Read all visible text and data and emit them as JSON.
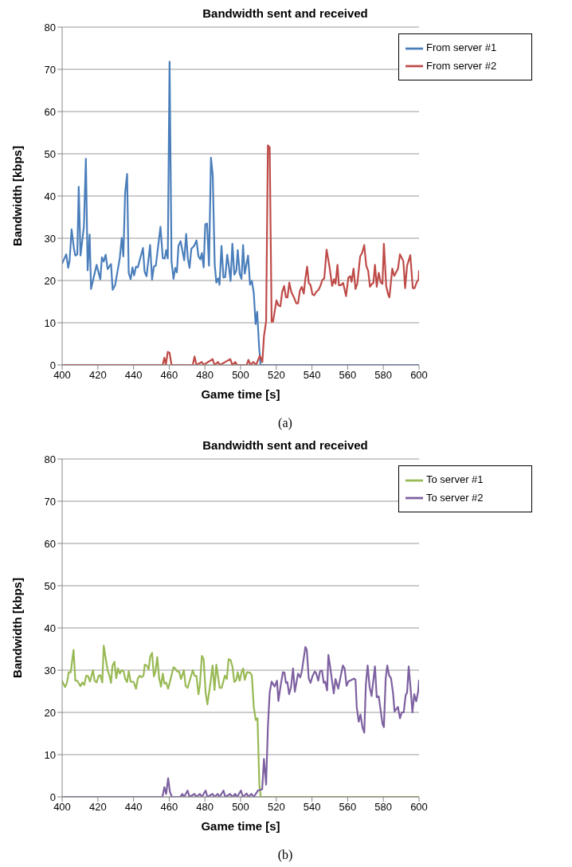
{
  "chart_data": [
    {
      "type": "line",
      "title": "Bandwidth sent and received",
      "xlabel": "Game time [s]",
      "ylabel": "Bandwidth [kbps]",
      "annotations": [
        "(a)"
      ],
      "xlim": [
        400,
        600
      ],
      "xticks": [
        400,
        420,
        440,
        460,
        480,
        500,
        520,
        540,
        560,
        580,
        600
      ],
      "ylim": [
        0,
        80
      ],
      "yticks": [
        0,
        10,
        20,
        30,
        40,
        50,
        60,
        70,
        80
      ],
      "grid": "y",
      "legend": "top right",
      "marker": "none",
      "line_style": "solid",
      "series": [
        {
          "name": "From server #1",
          "color": "#4a7ebb",
          "x": [
            400,
            400.5,
            402.3,
            403.4,
            404.2,
            405.3,
            406.6,
            407.4,
            408.5,
            409.3,
            410.3,
            412.2,
            413.3,
            414.3,
            415.4,
            416.2,
            419.3,
            421.4,
            422.3,
            423.3,
            424.4,
            425.5,
            427.4,
            428.3,
            429.7,
            432.3,
            433.4,
            434.3,
            435.3,
            436.4,
            437.3,
            438.4,
            439.4,
            440.3,
            441.4,
            442.4,
            445.3,
            446.2,
            447.3,
            449.3,
            450.4,
            451.4,
            452.5,
            455.1,
            456.4,
            457.5,
            458.3,
            459.2,
            460.2,
            461.3,
            462.4,
            463.4,
            464.3,
            465.2,
            466.4,
            468.4,
            469.5,
            470.4,
            471.4,
            472.4,
            474,
            475.3,
            476.4,
            477.4,
            478.3,
            479.3,
            480.2,
            481.2,
            482.3,
            483.4,
            484.4,
            485.5,
            486.4,
            487.4,
            488.2,
            489.3,
            490.4,
            491.4,
            492.5,
            493.3,
            494.4,
            495.4,
            496.5,
            497.6,
            498.4,
            499.5,
            500.5,
            501.4,
            502.3,
            504.2,
            505.3,
            506.3,
            507.4,
            508.4,
            509.3,
            510.4,
            511.2,
            600
          ],
          "values": [
            24,
            24.5,
            26.2,
            23,
            24.8,
            32.1,
            27.6,
            25.9,
            26.2,
            42.2,
            25.9,
            32.7,
            48.8,
            22.4,
            30.9,
            18,
            23.7,
            20.3,
            25.5,
            24.5,
            26.1,
            22.7,
            23.9,
            17.8,
            18.9,
            25.3,
            30.1,
            25.7,
            40.8,
            45.2,
            21.8,
            20.3,
            23.1,
            21.2,
            23.3,
            23.1,
            27.7,
            22.1,
            21,
            28.4,
            20.2,
            23.3,
            23.5,
            32.7,
            25.3,
            25.2,
            27.2,
            25.2,
            71.8,
            24.5,
            20.4,
            23,
            21.9,
            28.2,
            29.3,
            24.8,
            31,
            25.3,
            23,
            27.5,
            28.2,
            29.5,
            25.7,
            25,
            26.5,
            23.1,
            33.3,
            33.5,
            23.5,
            49.1,
            44.9,
            23.8,
            19.5,
            20.5,
            19,
            28.2,
            20.7,
            20.8,
            26.1,
            23.8,
            19.9,
            28.7,
            21.4,
            22.3,
            27.2,
            21.6,
            20.4,
            28.4,
            21.6,
            25.9,
            19,
            19.9,
            17,
            9.7,
            12.6,
            4.1,
            0,
            0
          ]
        },
        {
          "name": "From server #2",
          "color": "#be4b48",
          "x": [
            400,
            456.3,
            457.3,
            458.1,
            459.2,
            460.2,
            461.3,
            473.2,
            474.2,
            475.3,
            478.3,
            479.3,
            484.3,
            485.4,
            487.3,
            488.5,
            494.2,
            495.4,
            497,
            498.1,
            503.4,
            504.4,
            505.5,
            507.1,
            508.7,
            510.8,
            512.2,
            513.1,
            514.3,
            515.3,
            516.3,
            517.4,
            518.2,
            520.1,
            521.2,
            522.3,
            523.3,
            524.4,
            525.4,
            526.3,
            527.3,
            528.4,
            529.9,
            531.2,
            532.2,
            533.3,
            534.3,
            535.4,
            536.3,
            537.3,
            538.2,
            539.2,
            540.3,
            541.3,
            542.4,
            543.7,
            544.7,
            545.8,
            546.9,
            548.2,
            549.8,
            551.3,
            552.4,
            553.2,
            554.3,
            555.1,
            556.2,
            557.5,
            559.1,
            560.4,
            561.5,
            562.2,
            563.3,
            564.4,
            565.4,
            567,
            568.1,
            569.3,
            570.4,
            571.5,
            572.5,
            573.6,
            574.4,
            575.3,
            576.3,
            577.4,
            578.5,
            579.5,
            580.3,
            581.6,
            582.7,
            583.4,
            585,
            586.1,
            588.2,
            589.3,
            591.2,
            592.2,
            593.3,
            595.1,
            596.5,
            597.5,
            598.8,
            599.7,
            600
          ],
          "values": [
            0,
            0,
            1.7,
            0,
            3.1,
            2.9,
            0,
            0,
            2,
            0,
            0.7,
            0,
            1.4,
            0,
            0.7,
            0,
            1.4,
            0,
            0.7,
            0,
            0,
            1.2,
            0,
            0.7,
            0,
            2.2,
            0.7,
            6.8,
            10.3,
            52,
            51.5,
            10.2,
            10.3,
            15.3,
            14.1,
            13.9,
            17.3,
            18.7,
            16,
            16,
            19.5,
            17.3,
            16,
            14.6,
            14.6,
            17.7,
            18.5,
            16.9,
            20.4,
            23.3,
            19.4,
            18.9,
            16.7,
            16.5,
            17.3,
            17.8,
            18.7,
            20.1,
            20.5,
            27.3,
            23.3,
            18.7,
            20.3,
            19.2,
            23.7,
            18.9,
            18.9,
            19.4,
            16.3,
            20.7,
            21,
            19.7,
            22.8,
            18,
            19.2,
            25.7,
            26.5,
            28.4,
            23.5,
            22.3,
            18.5,
            19.2,
            19.4,
            23.7,
            18.5,
            21.8,
            19.6,
            19.2,
            28.7,
            18.7,
            16.7,
            16,
            22.8,
            21.1,
            22.8,
            26.2,
            24.6,
            18.2,
            23.5,
            26,
            18.2,
            18.2,
            19.7,
            20.1,
            22.4
          ]
        }
      ]
    },
    {
      "type": "line",
      "title": "Bandwidth sent and received",
      "xlabel": "Game time [s]",
      "ylabel": "Bandwidth [kbps]",
      "annotations": [
        "(b)"
      ],
      "xlim": [
        400,
        600
      ],
      "xticks": [
        400,
        420,
        440,
        460,
        480,
        500,
        520,
        540,
        560,
        580,
        600
      ],
      "ylim": [
        0,
        80
      ],
      "yticks": [
        0,
        10,
        20,
        30,
        40,
        50,
        60,
        70,
        80
      ],
      "grid": "y",
      "legend": "top right",
      "marker": "none",
      "line_style": "solid",
      "series": [
        {
          "name": "To server #1",
          "color": "#98b954",
          "x": [
            400,
            400.5,
            401.6,
            402.7,
            403.7,
            404.8,
            406.4,
            407.4,
            408.5,
            410.3,
            411.3,
            412.4,
            413.5,
            414.5,
            415.6,
            417.3,
            418.2,
            419.3,
            420.5,
            421.4,
            422.5,
            423.3,
            425.5,
            426.3,
            427.4,
            428.2,
            429.3,
            430.3,
            431.3,
            432.3,
            433.4,
            434.5,
            435.3,
            436.4,
            437.3,
            438.4,
            440.1,
            441.4,
            442.4,
            443.5,
            444.5,
            445.6,
            446.3,
            447.4,
            448.5,
            449.3,
            450.4,
            451.4,
            452.3,
            453.3,
            454.4,
            455.4,
            456.4,
            457.3,
            458.3,
            459.4,
            460.4,
            462.4,
            463.4,
            464.5,
            465.5,
            466.6,
            468.2,
            469.2,
            470.3,
            473.2,
            474.2,
            475.3,
            476.4,
            477.2,
            478.3,
            479.3,
            480.4,
            481.4,
            483.2,
            484.3,
            485.4,
            486.4,
            488.3,
            489.4,
            491.2,
            492.3,
            493.3,
            494.4,
            495.4,
            496.5,
            497.6,
            498.4,
            499.5,
            500.7,
            501.5,
            502.3,
            503.6,
            505.3,
            506.3,
            507.4,
            508.5,
            509.5,
            510.5,
            511.3,
            600
          ],
          "values": [
            27.5,
            27,
            26,
            27,
            29.5,
            29.5,
            34.8,
            27.5,
            27.5,
            26.2,
            27.1,
            26.5,
            28.7,
            28.6,
            27.3,
            30,
            27.5,
            27.1,
            28.7,
            28.8,
            27.1,
            35.8,
            29.9,
            29,
            27,
            31.1,
            32,
            28.1,
            30.4,
            29.2,
            30,
            29.7,
            28,
            27.2,
            29.8,
            27.3,
            27.2,
            25.6,
            28,
            28.7,
            28.3,
            28.7,
            31.3,
            31.1,
            30.2,
            33.1,
            34.1,
            28.5,
            29.7,
            33.1,
            28,
            26.1,
            29.2,
            26.8,
            27.1,
            25.6,
            27.2,
            30.7,
            30.4,
            29.7,
            29.7,
            27.9,
            30,
            26.3,
            25.8,
            30,
            28.7,
            28.6,
            24.3,
            26.5,
            33.4,
            32.6,
            24.7,
            21.9,
            27.3,
            31.1,
            25.3,
            31.3,
            25.8,
            25.8,
            28.7,
            27.9,
            32.6,
            32.4,
            30.9,
            27.2,
            27.7,
            29.5,
            27.5,
            29.7,
            30.4,
            27.7,
            29.5,
            29.4,
            28.8,
            21.2,
            18.2,
            18.6,
            2.9,
            0,
            0
          ]
        },
        {
          "name": "To server #2",
          "color": "#7d60a0",
          "x": [
            400,
            456.2,
            457.3,
            458.3,
            459.4,
            460.4,
            461.5,
            466.3,
            467.3,
            468.4,
            470.3,
            471.4,
            474.2,
            475.3,
            477.2,
            478.3,
            480.4,
            481.4,
            484.3,
            485.4,
            487.2,
            488.3,
            490.4,
            491.4,
            494.2,
            495.3,
            497,
            498.1,
            500.2,
            501.3,
            503.4,
            504.4,
            506,
            507.4,
            509.7,
            512.1,
            513.1,
            514.3,
            515.3,
            516.3,
            517.4,
            519.1,
            520.4,
            521.2,
            522.5,
            523.7,
            524.6,
            525.4,
            526.2,
            527.2,
            528.3,
            529.4,
            530.4,
            532.2,
            533.4,
            534.3,
            536.3,
            537.1,
            538.2,
            539.2,
            540.3,
            541.6,
            542.4,
            543.5,
            544.5,
            545.6,
            546.6,
            547.4,
            548.5,
            549.2,
            550,
            552.2,
            553.2,
            554.7,
            557.3,
            558.3,
            559.4,
            560.4,
            563.6,
            564.4,
            565.1,
            566.2,
            567.2,
            568.3,
            569.3,
            570.2,
            571.2,
            572.3,
            573.4,
            575.3,
            576.3,
            577.4,
            578.5,
            579.5,
            580.3,
            581.3,
            582.2,
            583.2,
            584.3,
            585.4,
            586.3,
            588.2,
            589.3,
            590.3,
            591.4,
            592.5,
            593.3,
            594.2,
            595.2,
            596.3,
            597.3,
            598.4,
            599.5,
            600
          ],
          "values": [
            0,
            0,
            2.3,
            0.7,
            4.4,
            1.2,
            0,
            0,
            0.7,
            0,
            1.5,
            0,
            0.7,
            0,
            0.7,
            0,
            1.5,
            0,
            0.7,
            0,
            0.7,
            0,
            1.5,
            0,
            0.7,
            0,
            0.7,
            0,
            1.5,
            0,
            0.8,
            0,
            0.7,
            0,
            1.5,
            1.8,
            9,
            2.9,
            16.5,
            24.7,
            27.3,
            26.1,
            27.5,
            22.7,
            26.5,
            29.5,
            29.4,
            27,
            27.2,
            24.3,
            26.1,
            30.4,
            24.9,
            29.2,
            28.3,
            29.7,
            35.5,
            34.8,
            28,
            27,
            28.6,
            29.7,
            29.2,
            27.5,
            29.7,
            29.9,
            27,
            27.3,
            25.2,
            33.6,
            31.4,
            24.5,
            27.9,
            25.6,
            31.1,
            30.4,
            26.3,
            27.3,
            28,
            27.7,
            21.2,
            17.8,
            19.5,
            16.5,
            15.2,
            26.6,
            31.1,
            26,
            23.9,
            30.9,
            23.6,
            23.8,
            20.5,
            17.3,
            16.5,
            28,
            31.1,
            28.8,
            28.1,
            24.7,
            20.2,
            21.3,
            18.6,
            20,
            20,
            24.1,
            24.7,
            30.9,
            26,
            20,
            24.3,
            22.6,
            24.9,
            27.7
          ]
        }
      ]
    }
  ]
}
